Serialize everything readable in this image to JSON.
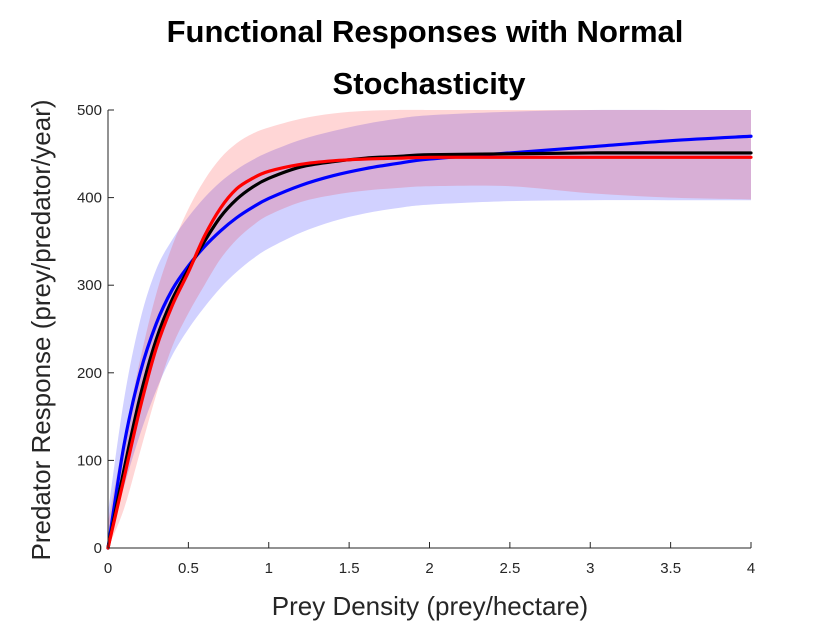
{
  "chart_data": {
    "type": "line",
    "title_lines": [
      "Functional Responses with Normal",
      "Stochasticity"
    ],
    "xlabel": "Prey Density (prey/hectare)",
    "ylabel": "Predator Response (prey/predator/year)",
    "xlim": [
      0,
      4
    ],
    "ylim": [
      0,
      500
    ],
    "xticks": [
      0,
      0.5,
      1,
      1.5,
      2,
      2.5,
      3,
      3.5,
      4
    ],
    "xtick_labels": [
      "0",
      "0.5",
      "1",
      "1.5",
      "2",
      "2.5",
      "3",
      "3.5",
      "4"
    ],
    "yticks": [
      0,
      100,
      200,
      300,
      400,
      500
    ],
    "ytick_labels": [
      "0",
      "100",
      "200",
      "300",
      "400",
      "500"
    ],
    "grid": false,
    "series": [
      {
        "name": "blue",
        "color": "#0000ff",
        "x": [
          0,
          0.1,
          0.2,
          0.3,
          0.4,
          0.5,
          0.6,
          0.7,
          0.8,
          0.9,
          1.0,
          1.2,
          1.4,
          1.6,
          1.8,
          2.0,
          2.5,
          3.0,
          3.5,
          4.0
        ],
        "y": [
          0,
          118,
          200,
          256,
          295,
          322,
          344,
          362,
          377,
          389,
          399,
          414,
          425,
          433,
          439,
          444,
          451,
          458,
          465,
          470
        ]
      },
      {
        "name": "black",
        "color": "#000000",
        "x": [
          0,
          0.1,
          0.2,
          0.3,
          0.4,
          0.5,
          0.6,
          0.7,
          0.8,
          0.9,
          1.0,
          1.2,
          1.4,
          1.6,
          1.8,
          2.0,
          2.5,
          3.0,
          3.5,
          4.0
        ],
        "y": [
          0,
          90,
          173,
          238,
          284,
          318,
          350,
          378,
          398,
          412,
          422,
          435,
          441,
          445,
          447,
          449,
          450,
          451,
          451,
          451
        ]
      },
      {
        "name": "red",
        "color": "#ff0000",
        "x": [
          0,
          0.1,
          0.2,
          0.3,
          0.4,
          0.5,
          0.6,
          0.7,
          0.8,
          0.9,
          1.0,
          1.2,
          1.4,
          1.6,
          1.8,
          2.0,
          2.5,
          3.0,
          3.5,
          4.0
        ],
        "y": [
          0,
          80,
          160,
          228,
          277,
          315,
          356,
          388,
          410,
          422,
          430,
          438,
          442,
          444,
          445,
          446,
          446,
          446,
          446,
          446
        ]
      }
    ],
    "bands": [
      {
        "name": "blue-band",
        "color": "#0000ff",
        "opacity": 0.18,
        "x": [
          0,
          0.1,
          0.2,
          0.3,
          0.4,
          0.5,
          0.6,
          0.7,
          0.8,
          0.9,
          1.0,
          1.2,
          1.4,
          1.6,
          1.8,
          2.0,
          2.5,
          3.0,
          3.5,
          4.0
        ],
        "lower": [
          0,
          70,
          130,
          180,
          220,
          250,
          275,
          297,
          315,
          330,
          342,
          360,
          373,
          382,
          388,
          392,
          396,
          397,
          397,
          397
        ],
        "upper": [
          40,
          170,
          260,
          318,
          352,
          378,
          400,
          418,
          432,
          443,
          452,
          466,
          476,
          484,
          490,
          494,
          498,
          500,
          500,
          500
        ]
      },
      {
        "name": "red-band",
        "color": "#ff0000",
        "opacity": 0.16,
        "x": [
          0,
          0.1,
          0.2,
          0.3,
          0.4,
          0.5,
          0.6,
          0.7,
          0.8,
          0.9,
          1.0,
          1.2,
          1.4,
          1.6,
          1.8,
          2.0,
          2.5,
          3.0,
          3.5,
          4.0
        ],
        "lower": [
          0,
          45,
          110,
          175,
          230,
          268,
          300,
          330,
          352,
          368,
          380,
          395,
          403,
          408,
          411,
          413,
          413,
          405,
          400,
          398
        ],
        "upper": [
          30,
          125,
          215,
          290,
          345,
          387,
          420,
          445,
          462,
          473,
          480,
          490,
          496,
          499,
          500,
          500,
          500,
          500,
          500,
          500
        ]
      }
    ]
  }
}
